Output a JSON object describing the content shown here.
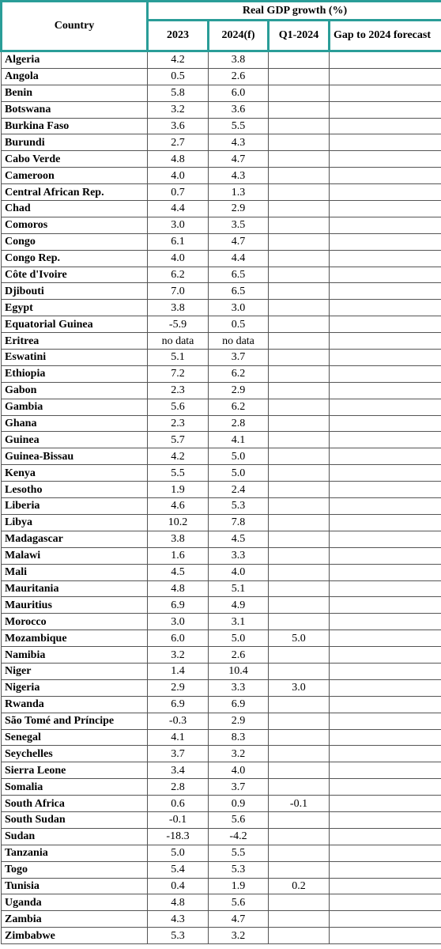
{
  "table": {
    "header": {
      "country": "Country",
      "group": "Real GDP growth (%)",
      "columns": [
        "2023",
        "2024(f)",
        "Q1-2024",
        "Gap to 2024 forecast"
      ]
    },
    "rows": [
      {
        "country": "Algeria",
        "y2023": "4.2",
        "y2024f": "3.8"
      },
      {
        "country": "Angola",
        "y2023": "0.5",
        "y2024f": "2.6"
      },
      {
        "country": "Benin",
        "y2023": "5.8",
        "y2024f": "6.0"
      },
      {
        "country": "Botswana",
        "y2023": "3.2",
        "y2024f": "3.6"
      },
      {
        "country": "Burkina Faso",
        "y2023": "3.6",
        "y2024f": "5.5"
      },
      {
        "country": "Burundi",
        "y2023": "2.7",
        "y2024f": "4.3"
      },
      {
        "country": "Cabo Verde",
        "y2023": "4.8",
        "y2024f": "4.7"
      },
      {
        "country": "Cameroon",
        "y2023": "4.0",
        "y2024f": "4.3"
      },
      {
        "country": "Central African Rep.",
        "y2023": "0.7",
        "y2024f": "1.3"
      },
      {
        "country": "Chad",
        "y2023": "4.4",
        "y2024f": "2.9"
      },
      {
        "country": "Comoros",
        "y2023": "3.0",
        "y2024f": "3.5"
      },
      {
        "country": "Congo",
        "y2023": "6.1",
        "y2024f": "4.7"
      },
      {
        "country": "Congo Rep.",
        "y2023": "4.0",
        "y2024f": "4.4"
      },
      {
        "country": "Côte d'Ivoire",
        "y2023": "6.2",
        "y2024f": "6.5"
      },
      {
        "country": "Djibouti",
        "y2023": "7.0",
        "y2024f": "6.5"
      },
      {
        "country": "Egypt",
        "y2023": "3.8",
        "y2024f": "3.0"
      },
      {
        "country": "Equatorial Guinea",
        "y2023": "-5.9",
        "y2024f": "0.5"
      },
      {
        "country": "Eritrea",
        "y2023": "no data",
        "y2024f": "no data"
      },
      {
        "country": "Eswatini",
        "y2023": "5.1",
        "y2024f": "3.7"
      },
      {
        "country": "Ethiopia",
        "y2023": "7.2",
        "y2024f": "6.2"
      },
      {
        "country": "Gabon",
        "y2023": "2.3",
        "y2024f": "2.9"
      },
      {
        "country": "Gambia",
        "y2023": "5.6",
        "y2024f": "6.2"
      },
      {
        "country": "Ghana",
        "y2023": "2.3",
        "y2024f": "2.8"
      },
      {
        "country": "Guinea",
        "y2023": "5.7",
        "y2024f": "4.1"
      },
      {
        "country": "Guinea-Bissau",
        "y2023": "4.2",
        "y2024f": "5.0"
      },
      {
        "country": "Kenya",
        "y2023": "5.5",
        "y2024f": "5.0"
      },
      {
        "country": "Lesotho",
        "y2023": "1.9",
        "y2024f": "2.4"
      },
      {
        "country": "Liberia",
        "y2023": "4.6",
        "y2024f": "5.3"
      },
      {
        "country": "Libya",
        "y2023": "10.2",
        "y2024f": "7.8"
      },
      {
        "country": "Madagascar",
        "y2023": "3.8",
        "y2024f": "4.5"
      },
      {
        "country": "Malawi",
        "y2023": "1.6",
        "y2024f": "3.3"
      },
      {
        "country": "Mali",
        "y2023": "4.5",
        "y2024f": "4.0"
      },
      {
        "country": "Mauritania",
        "y2023": "4.8",
        "y2024f": "5.1"
      },
      {
        "country": "Mauritius",
        "y2023": "6.9",
        "y2024f": "4.9"
      },
      {
        "country": "Morocco",
        "y2023": "3.0",
        "y2024f": "3.1"
      },
      {
        "country": "Mozambique",
        "y2023": "6.0",
        "y2024f": "5.0",
        "q1_2024": "5.0"
      },
      {
        "country": "Namibia",
        "y2023": "3.2",
        "y2024f": "2.6"
      },
      {
        "country": "Niger",
        "y2023": "1.4",
        "y2024f": "10.4"
      },
      {
        "country": "Nigeria",
        "y2023": "2.9",
        "y2024f": "3.3",
        "q1_2024": "3.0"
      },
      {
        "country": "Rwanda",
        "y2023": "6.9",
        "y2024f": "6.9"
      },
      {
        "country": "São Tomé and Príncipe",
        "y2023": "-0.3",
        "y2024f": "2.9"
      },
      {
        "country": "Senegal",
        "y2023": "4.1",
        "y2024f": "8.3"
      },
      {
        "country": "Seychelles",
        "y2023": "3.7",
        "y2024f": "3.2"
      },
      {
        "country": "Sierra Leone",
        "y2023": "3.4",
        "y2024f": "4.0"
      },
      {
        "country": "Somalia",
        "y2023": "2.8",
        "y2024f": "3.7"
      },
      {
        "country": "South Africa",
        "y2023": "0.6",
        "y2024f": "0.9",
        "q1_2024": "-0.1"
      },
      {
        "country": "South Sudan",
        "y2023": "-0.1",
        "y2024f": "5.6"
      },
      {
        "country": "Sudan",
        "y2023": "-18.3",
        "y2024f": "-4.2"
      },
      {
        "country": "Tanzania",
        "y2023": "5.0",
        "y2024f": "5.5"
      },
      {
        "country": "Togo",
        "y2023": "5.4",
        "y2024f": "5.3"
      },
      {
        "country": "Tunisia",
        "y2023": "0.4",
        "y2024f": "1.9",
        "q1_2024": "0.2"
      },
      {
        "country": "Uganda",
        "y2023": "4.8",
        "y2024f": "5.6"
      },
      {
        "country": "Zambia",
        "y2023": "4.3",
        "y2024f": "4.7"
      },
      {
        "country": "Zimbabwe",
        "y2023": "5.3",
        "y2024f": "3.2"
      }
    ]
  }
}
